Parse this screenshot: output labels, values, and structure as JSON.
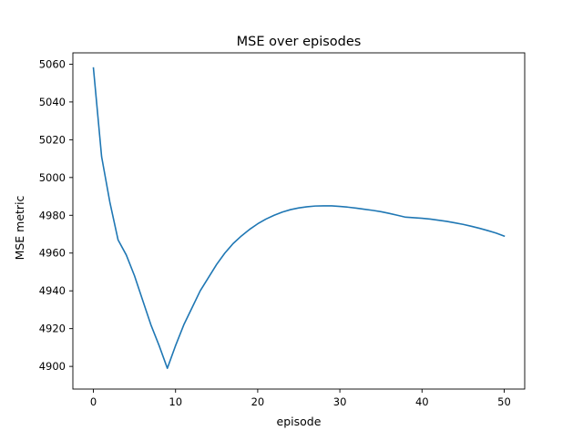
{
  "chart_data": {
    "type": "line",
    "title": "MSE over episodes",
    "xlabel": "episode",
    "ylabel": "MSE metric",
    "xlim": [
      -2.5,
      52.5
    ],
    "ylim": [
      4888,
      5066
    ],
    "xticks": [
      0,
      10,
      20,
      30,
      40,
      50
    ],
    "yticks": [
      4900,
      4920,
      4940,
      4960,
      4980,
      5000,
      5020,
      5040,
      5060
    ],
    "grid": false,
    "legend": "none",
    "line_color": "#1f77b4",
    "series": [
      {
        "x": [
          0,
          1,
          2,
          3,
          4,
          5,
          6,
          7,
          8,
          9,
          10,
          11,
          12,
          13,
          14,
          15,
          16,
          17,
          18,
          19,
          20,
          21,
          22,
          23,
          24,
          25,
          26,
          27,
          28,
          29,
          30,
          31,
          32,
          33,
          34,
          35,
          36,
          37,
          38,
          39,
          40,
          41,
          42,
          43,
          44,
          45,
          46,
          47,
          48,
          49,
          50
        ],
        "values": [
          5058,
          5011,
          4987,
          4967,
          4959,
          4948,
          4935,
          4922,
          4911,
          4899,
          4911,
          4922,
          4931,
          4940,
          4947,
          4954,
          4960,
          4965,
          4969,
          4972.5,
          4975.5,
          4978,
          4980,
          4981.7,
          4983,
          4983.9,
          4984.5,
          4984.9,
          4985,
          4985,
          4984.7,
          4984.3,
          4983.8,
          4983.2,
          4982.6,
          4981.9,
          4981,
          4980,
          4979,
          4978.7,
          4978.4,
          4978,
          4977.4,
          4976.8,
          4976,
          4975.2,
          4974.2,
          4973.1,
          4971.9,
          4970.6,
          4969
        ]
      }
    ]
  }
}
